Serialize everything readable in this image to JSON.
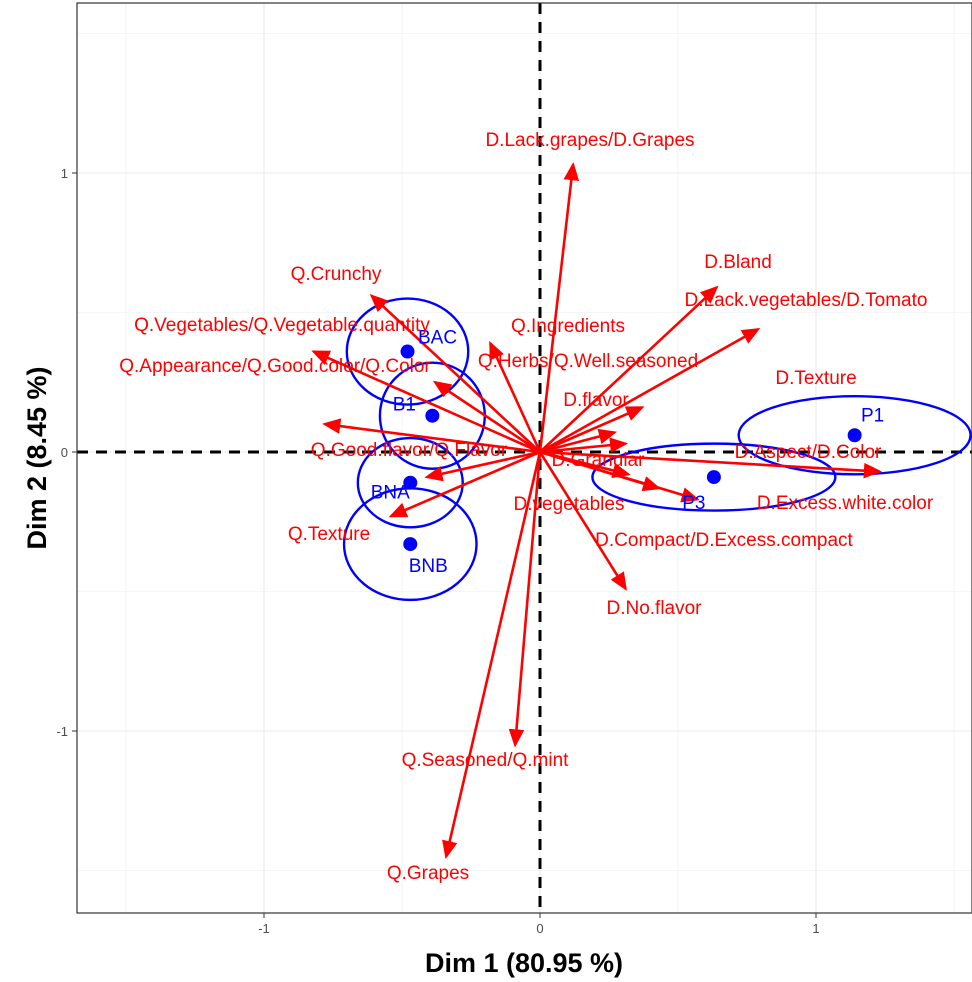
{
  "chart_data": {
    "type": "scatter",
    "subtype": "MFA biplot with product confidence ellipses and variable arrows",
    "xlabel": "Dim 1 (80.95 %)",
    "ylabel": "Dim 2 (8.45 %)",
    "xlim": [
      -1.65,
      1.55
    ],
    "ylim": [
      -1.66,
      1.59
    ],
    "x_ticks": [
      -1,
      0,
      1
    ],
    "x_tick_labels": [
      "-1",
      "0",
      "1"
    ],
    "y_ticks": [
      -1,
      0,
      1
    ],
    "y_tick_labels": [
      "-1",
      "0",
      "1"
    ],
    "grid": true,
    "reference_lines": {
      "x": 0,
      "y": 0,
      "style": "dashed"
    },
    "colors": {
      "variables": "#ff0000",
      "products": "#0000ff",
      "grid": "#ebebeb",
      "panel_border": "#333333"
    },
    "products": [
      {
        "name": "BAC",
        "x": -0.48,
        "y": 0.36,
        "ellipse": {
          "rx": 0.22,
          "ry": 0.19
        }
      },
      {
        "name": "B1",
        "x": -0.39,
        "y": 0.13,
        "ellipse": {
          "rx": 0.19,
          "ry": 0.19
        }
      },
      {
        "name": "BNA",
        "x": -0.47,
        "y": -0.11,
        "ellipse": {
          "rx": 0.19,
          "ry": 0.16
        }
      },
      {
        "name": "BNB",
        "x": -0.47,
        "y": -0.33,
        "ellipse": {
          "rx": 0.24,
          "ry": 0.2
        }
      },
      {
        "name": "P1",
        "x": 1.14,
        "y": 0.06,
        "ellipse": {
          "rx": 0.42,
          "ry": 0.14
        }
      },
      {
        "name": "P3",
        "x": 0.63,
        "y": -0.09,
        "ellipse": {
          "rx": 0.44,
          "ry": 0.12
        }
      }
    ],
    "variables": [
      {
        "name": "D.Lack.grapes/D.Grapes",
        "x": 0.12,
        "y": 1.03
      },
      {
        "name": "D.Bland",
        "x": 0.64,
        "y": 0.59
      },
      {
        "name": "D.Lack.vegetables/D.Tomato",
        "x": 0.79,
        "y": 0.44
      },
      {
        "name": "D.Texture",
        "x": 0.37,
        "y": 0.16
      },
      {
        "name": "D.flavor",
        "x": 0.27,
        "y": 0.07
      },
      {
        "name": "D.Granular",
        "x": 0.31,
        "y": 0.03
      },
      {
        "name": "D.Aspect/D.Color",
        "x": 1.23,
        "y": -0.07
      },
      {
        "name": "D.Excess.white.color",
        "x": 0.57,
        "y": -0.17
      },
      {
        "name": "D.Compact/D.Excess.compact",
        "x": 0.43,
        "y": -0.13
      },
      {
        "name": "D.No.flavor",
        "x": 0.31,
        "y": -0.49
      },
      {
        "name": "D.vegetables",
        "x": 0.32,
        "y": -0.08
      },
      {
        "name": "Q.Seasoned/Q.mint",
        "x": -0.09,
        "y": -1.05
      },
      {
        "name": "Q.Grapes",
        "x": -0.34,
        "y": -1.45
      },
      {
        "name": "Q.Texture",
        "x": -0.54,
        "y": -0.23
      },
      {
        "name": "Q.Good.flavor/Q.Flavor",
        "x": -0.41,
        "y": -0.09
      },
      {
        "name": "Q.Appearance/Q.Good.color/Q.Color",
        "x": -0.78,
        "y": 0.1
      },
      {
        "name": "Q.Vegetables/Q.Vegetable.quantity",
        "x": -0.82,
        "y": 0.36
      },
      {
        "name": "Q.Crunchy",
        "x": -0.61,
        "y": 0.56
      },
      {
        "name": "Q.Herbs/Q.Well.seasoned",
        "x": -0.38,
        "y": 0.25
      },
      {
        "name": "Q.Ingredients",
        "x": -0.18,
        "y": 0.39
      }
    ],
    "variable_labels": [
      "D.Lack.grapes/D.Grapes",
      "D.Bland",
      "D.Lack.vegetables/D.Tomato",
      "D.Texture",
      "D.flavor",
      "D.Granular",
      "D.Aspect/D.Color",
      "D.Excess.white.color",
      "D.Compact/D.Excess.compact",
      "D.No.flavor",
      "D.vegetables",
      "Q.Seasoned/Q.mint",
      "Q.Grapes",
      "Q.Texture",
      "Q.Good.flavor/Q.Flavor",
      "Q.Appearance/Q.Good.color/Q.Color",
      "Q.Vegetables/Q.Vegetable.quantity",
      "Q.Crunchy",
      "Q.Herbs/Q.Well.seasoned",
      "Q.Ingredients"
    ]
  }
}
